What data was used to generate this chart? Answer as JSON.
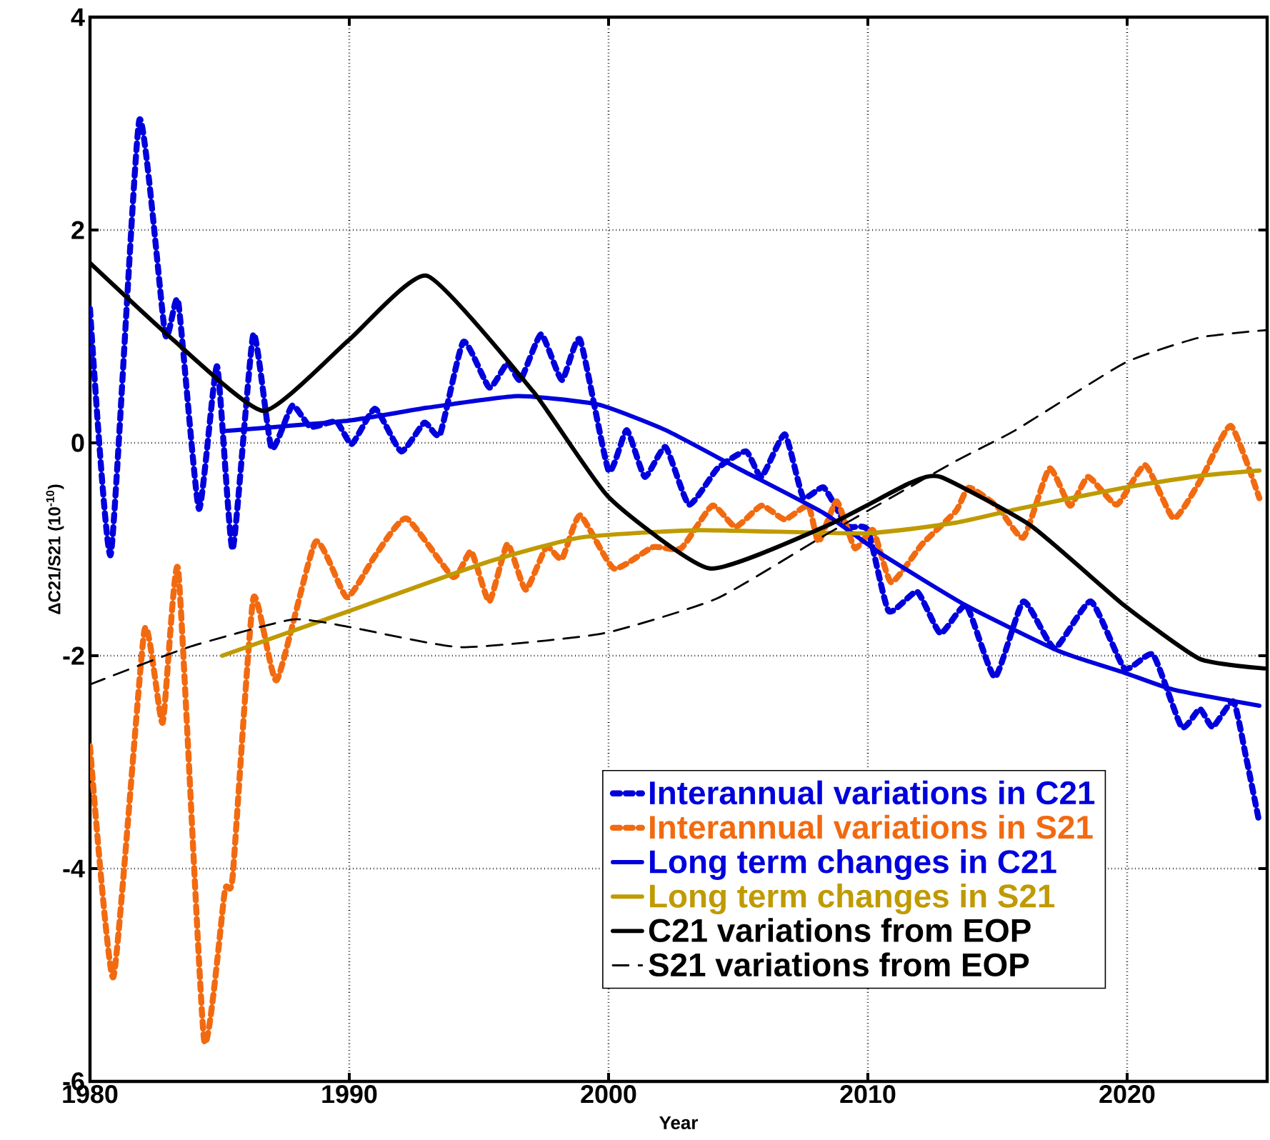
{
  "chart_data": {
    "type": "line",
    "xlabel": "Year",
    "ylabel": "ΔC21/S21 (10$^{-10}$)",
    "xlim": [
      1980,
      2025.4
    ],
    "ylim": [
      -6,
      4
    ],
    "xticks": [
      1980,
      1990,
      2000,
      2010,
      2020
    ],
    "yticks": [
      -6,
      -4,
      -2,
      0,
      2,
      4
    ],
    "grid": true,
    "legend": "bottom right",
    "series": [
      {
        "name": "Interannual variations in C21",
        "color": "#0000dd",
        "line_style": "dotted",
        "x": [
          1980.0,
          1980.8,
          1981.9,
          1982.9,
          1983.4,
          1984.2,
          1984.9,
          1985.5,
          1986.3,
          1987.0,
          1987.8,
          1988.5,
          1989.5,
          1990.1,
          1991.0,
          1992.0,
          1992.9,
          1993.5,
          1994.4,
          1995.4,
          1996.1,
          1996.6,
          1997.4,
          1998.2,
          1998.9,
          2000.0,
          2000.7,
          2001.4,
          2002.2,
          2003.1,
          2004.2,
          2005.3,
          2005.9,
          2006.8,
          2007.5,
          2008.3,
          2009.2,
          2010.0,
          2010.8,
          2011.9,
          2012.8,
          2013.8,
          2014.9,
          2016.0,
          2017.2,
          2018.6,
          2019.9,
          2021.0,
          2022.1,
          2022.8,
          2023.3,
          2024.1,
          2024.6,
          2025.1
        ],
        "values": [
          1.26,
          -1.05,
          3.03,
          1.02,
          1.33,
          -0.62,
          0.72,
          -1.0,
          1.02,
          -0.05,
          0.35,
          0.15,
          0.2,
          -0.01,
          0.32,
          -0.08,
          0.19,
          0.08,
          0.95,
          0.52,
          0.75,
          0.59,
          1.02,
          0.59,
          0.97,
          -0.26,
          0.12,
          -0.32,
          -0.04,
          -0.58,
          -0.24,
          -0.08,
          -0.32,
          0.08,
          -0.51,
          -0.42,
          -0.78,
          -0.82,
          -1.58,
          -1.4,
          -1.79,
          -1.53,
          -2.2,
          -1.49,
          -1.93,
          -1.49,
          -2.12,
          -1.99,
          -2.67,
          -2.5,
          -2.67,
          -2.43,
          -2.97,
          -3.57
        ]
      },
      {
        "name": "Interannual variations in S21",
        "color": "#f26a10",
        "line_style": "dotted",
        "x": [
          1980.0,
          1980.9,
          1982.1,
          1982.8,
          1983.4,
          1984.4,
          1985.2,
          1985.5,
          1986.3,
          1987.2,
          1988.7,
          1989.9,
          1991.0,
          1992.2,
          1994.0,
          1994.7,
          1995.4,
          1996.1,
          1996.8,
          1997.6,
          1998.2,
          1998.9,
          2000.2,
          2001.7,
          2002.8,
          2004.0,
          2004.9,
          2005.9,
          2006.8,
          2007.7,
          2008.1,
          2008.8,
          2009.5,
          2010.2,
          2010.9,
          2012.1,
          2013.4,
          2013.9,
          2015.0,
          2016.0,
          2017.0,
          2017.8,
          2018.5,
          2019.6,
          2020.7,
          2021.8,
          2022.9,
          2024.0,
          2025.1
        ],
        "values": [
          -2.85,
          -5.02,
          -1.76,
          -2.63,
          -1.19,
          -5.61,
          -4.21,
          -4.08,
          -1.46,
          -2.23,
          -0.93,
          -1.45,
          -1.06,
          -0.71,
          -1.26,
          -1.02,
          -1.49,
          -0.95,
          -1.38,
          -0.98,
          -1.09,
          -0.68,
          -1.18,
          -0.98,
          -0.99,
          -0.59,
          -0.79,
          -0.59,
          -0.72,
          -0.59,
          -0.93,
          -0.55,
          -0.99,
          -0.82,
          -1.31,
          -0.95,
          -0.64,
          -0.42,
          -0.6,
          -0.89,
          -0.24,
          -0.59,
          -0.32,
          -0.58,
          -0.21,
          -0.71,
          -0.32,
          0.16,
          -0.52
        ]
      },
      {
        "name": "Long term changes in C21",
        "color": "#0000dd",
        "line_style": "solid",
        "x": [
          1985.1,
          1990.0,
          1993.0,
          1996.5,
          1999.6,
          2002.2,
          2005.0,
          2008.3,
          2010.5,
          2013.8,
          2017.4,
          2019.9,
          2021.8,
          2025.1
        ],
        "values": [
          0.11,
          0.21,
          0.33,
          0.44,
          0.36,
          0.12,
          -0.24,
          -0.66,
          -1.04,
          -1.53,
          -1.96,
          -2.16,
          -2.32,
          -2.47
        ]
      },
      {
        "name": "Long term changes in S21",
        "color": "#bf9a00",
        "line_style": "solid",
        "x": [
          1985.1,
          1990.0,
          1995.2,
          1998.9,
          2003.5,
          2009.9,
          2013.4,
          2015.8,
          2019.9,
          2022.8,
          2025.1
        ],
        "values": [
          -2.0,
          -1.58,
          -1.13,
          -0.89,
          -0.82,
          -0.85,
          -0.75,
          -0.62,
          -0.42,
          -0.31,
          -0.26
        ]
      },
      {
        "name": "C21 variations from EOP",
        "color": "#000000",
        "line_style": "solid",
        "x": [
          1980.0,
          1983.2,
          1986.7,
          1990.0,
          1993.0,
          1997.1,
          2000.0,
          2003.9,
          2008.4,
          2011.6,
          2012.8,
          2016.3,
          2019.9,
          2022.8,
          2025.3
        ],
        "values": [
          1.69,
          0.97,
          0.3,
          0.97,
          1.57,
          0.48,
          -0.51,
          -1.18,
          -0.78,
          -0.38,
          -0.32,
          -0.78,
          -1.53,
          -2.03,
          -2.12
        ]
      },
      {
        "name": "S21 variations from EOP",
        "color": "#000000",
        "line_style": "dashed",
        "x": [
          1980.0,
          1983.8,
          1987.8,
          1990.0,
          1994.3,
          1999.8,
          2004.2,
          2008.4,
          2013.4,
          2015.7,
          2019.9,
          2022.8,
          2025.4
        ],
        "values": [
          -2.27,
          -1.92,
          -1.66,
          -1.73,
          -1.92,
          -1.79,
          -1.46,
          -0.86,
          -0.17,
          0.12,
          0.75,
          0.99,
          1.06
        ]
      }
    ]
  }
}
